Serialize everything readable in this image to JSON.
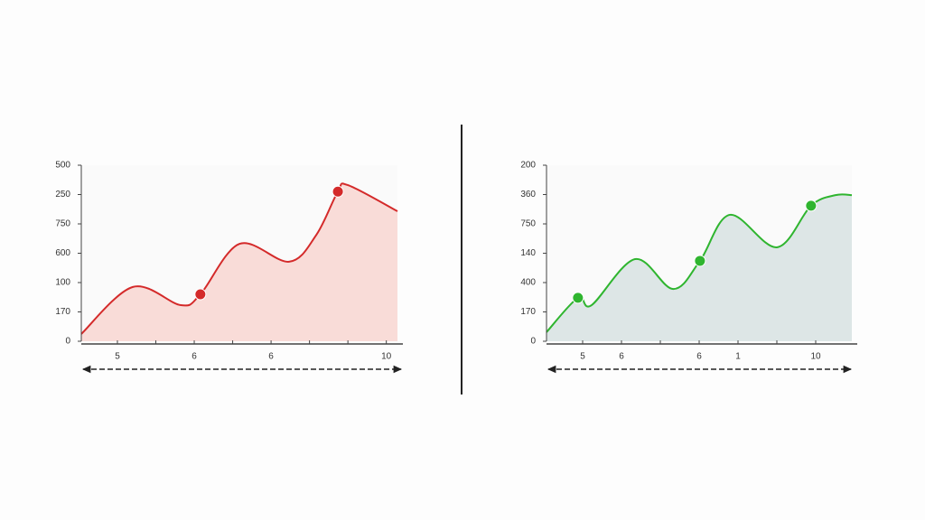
{
  "chart_data": [
    {
      "type": "area",
      "color": "#d42a2a",
      "fill": "#f9dcd8",
      "xlim": [
        -0.94,
        7.29
      ],
      "ylim": [
        0,
        6
      ],
      "yticks": [
        {
          "value": 0,
          "label": "0"
        },
        {
          "value": 1,
          "label": "170"
        },
        {
          "value": 2,
          "label": "100"
        },
        {
          "value": 3,
          "label": "600"
        },
        {
          "value": 4,
          "label": "750"
        },
        {
          "value": 5,
          "label": "250"
        },
        {
          "value": 6,
          "label": "500"
        }
      ],
      "xticks": [
        {
          "value": 0,
          "label": "5"
        },
        {
          "value": 1,
          "label": null
        },
        {
          "value": 2,
          "label": "6"
        },
        {
          "value": 3,
          "label": null
        },
        {
          "value": 4,
          "label": "6"
        },
        {
          "value": 5,
          "label": null
        },
        {
          "value": 6,
          "label": null
        },
        {
          "value": 7,
          "label": "10"
        }
      ],
      "x": [
        -0.94,
        0.4,
        1.65,
        2.16,
        3.18,
        4.47,
        5.18,
        5.74,
        6.0,
        7.29
      ],
      "values": [
        0.25,
        1.85,
        1.23,
        1.6,
        3.32,
        2.71,
        3.63,
        5.1,
        5.32,
        4.43
      ],
      "markers": {
        "x": [
          2.16,
          5.74
        ],
        "values": [
          1.6,
          5.1
        ]
      }
    },
    {
      "type": "area",
      "color": "#2fb52f",
      "fill": "#dde6e6",
      "xlim": [
        -0.93,
        6.93
      ],
      "ylim": [
        0,
        6
      ],
      "yticks": [
        {
          "value": 0,
          "label": "0"
        },
        {
          "value": 1,
          "label": "170"
        },
        {
          "value": 2,
          "label": "400"
        },
        {
          "value": 3,
          "label": "140"
        },
        {
          "value": 4,
          "label": "750"
        },
        {
          "value": 5,
          "label": "360"
        },
        {
          "value": 6,
          "label": "200"
        }
      ],
      "xticks": [
        {
          "value": 0,
          "label": "5"
        },
        {
          "value": 1,
          "label": "6"
        },
        {
          "value": 2,
          "label": null
        },
        {
          "value": 3,
          "label": "6"
        },
        {
          "value": 4,
          "label": "1"
        },
        {
          "value": 5,
          "label": null
        },
        {
          "value": 6,
          "label": "10"
        }
      ],
      "x": [
        -0.93,
        -0.12,
        0.23,
        1.35,
        2.33,
        3.02,
        3.79,
        5.0,
        5.88,
        6.51,
        6.93
      ],
      "values": [
        0.31,
        1.48,
        1.23,
        2.8,
        1.78,
        2.74,
        4.31,
        3.2,
        4.62,
        4.98,
        4.98
      ],
      "markers": {
        "x": [
          -0.12,
          3.02,
          5.88
        ],
        "values": [
          1.48,
          2.74,
          4.62
        ]
      }
    }
  ]
}
